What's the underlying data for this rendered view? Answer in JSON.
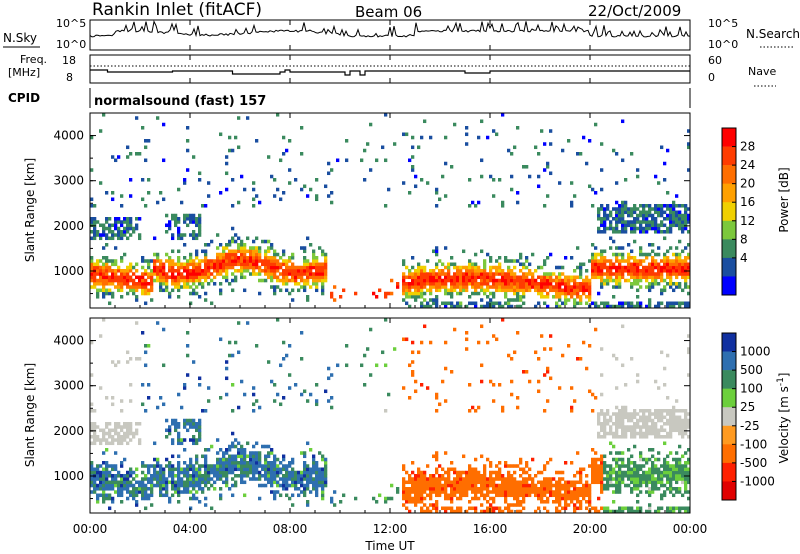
{
  "header": {
    "site": "Rankin Inlet (fitACF)",
    "beam": "Beam 06",
    "date": "22/Oct/2009"
  },
  "noise_panel": {
    "left_label": "N.Sky",
    "right_label": "N.Search",
    "left_ticks": [
      "10^5",
      "10^0"
    ],
    "right_ticks": [
      "10^5",
      "10^0"
    ]
  },
  "freq_panel": {
    "left_label_line1": "Freq.",
    "left_label_line2": "[MHz]",
    "left_ticks": [
      "18",
      "8"
    ],
    "right_ticks": [
      "60",
      "0"
    ],
    "right_label": "Nave"
  },
  "cpid_panel": {
    "label": "CPID",
    "mode_text": "normalsound (fast)  157"
  },
  "chart_data": [
    {
      "type": "heatmap",
      "name": "power",
      "ylabel": "Slant Range [km]",
      "ylim": [
        180,
        4500
      ],
      "yticks": [
        "1000",
        "2000",
        "3000",
        "4000"
      ],
      "colorbar": {
        "label": "Power [dB]",
        "ticks": [
          "28",
          "24",
          "20",
          "16",
          "12",
          "8",
          "4"
        ],
        "colors": [
          "#ff0000",
          "#ff3c00",
          "#ff6e00",
          "#ffa000",
          "#f0d000",
          "#7cc83c",
          "#3a8a5e",
          "#1a4ea0",
          "#0000ff"
        ]
      }
    },
    {
      "type": "heatmap",
      "name": "velocity",
      "ylabel": "Slant Range [km]",
      "ylim": [
        180,
        4500
      ],
      "yticks": [
        "1000",
        "2000",
        "3000",
        "4000"
      ],
      "colorbar": {
        "label": "Velocity [m s^-1]",
        "ticks": [
          "1000",
          "500",
          "100",
          "25",
          "-25",
          "-100",
          "-500",
          "-1000"
        ],
        "colors": [
          "#1030a0",
          "#2e6fb0",
          "#3a8a5e",
          "#6ccf3c",
          "#c8c8c0",
          "#ff9a20",
          "#ff6e00",
          "#ff2000",
          "#e00000"
        ]
      }
    }
  ],
  "x_axis": {
    "ticks": [
      "00:00",
      "04:00",
      "08:00",
      "12:00",
      "16:00",
      "20:00",
      "00:00"
    ],
    "label": "Time UT"
  }
}
